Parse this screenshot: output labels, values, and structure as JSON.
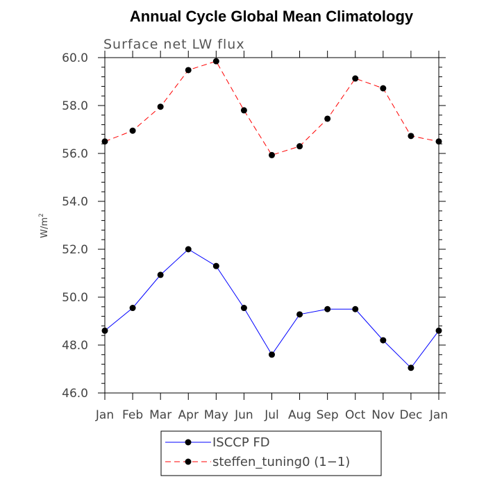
{
  "chart_data": {
    "type": "line",
    "title": "Annual Cycle Global Mean Climatology",
    "subtitle": "Surface net LW flux",
    "ylabel": "W/m",
    "ylabel_superscript": "2",
    "xlabel": "",
    "categories": [
      "Jan",
      "Feb",
      "Mar",
      "Apr",
      "May",
      "Jun",
      "Jul",
      "Aug",
      "Sep",
      "Oct",
      "Nov",
      "Dec",
      "Jan"
    ],
    "ylim": [
      46.0,
      60.0
    ],
    "yticks": [
      "46.0",
      "48.0",
      "50.0",
      "52.0",
      "54.0",
      "56.0",
      "58.0",
      "60.0"
    ],
    "grid": false,
    "legend_position": "bottom",
    "series": [
      {
        "name": "ISCCP FD",
        "color": "#0000ff",
        "dash": "solid",
        "marker": "filled-circle",
        "values": [
          48.6,
          49.55,
          50.93,
          52.0,
          51.3,
          49.55,
          47.6,
          49.28,
          49.5,
          49.5,
          48.2,
          47.05,
          48.6
        ]
      },
      {
        "name": "steffen_tuning0 (1−1)",
        "color": "#ff0000",
        "dash": "dashed",
        "marker": "filled-circle",
        "values": [
          56.5,
          56.95,
          57.95,
          59.48,
          59.85,
          57.8,
          55.93,
          56.3,
          57.45,
          59.13,
          58.72,
          56.73,
          56.5
        ]
      }
    ]
  }
}
